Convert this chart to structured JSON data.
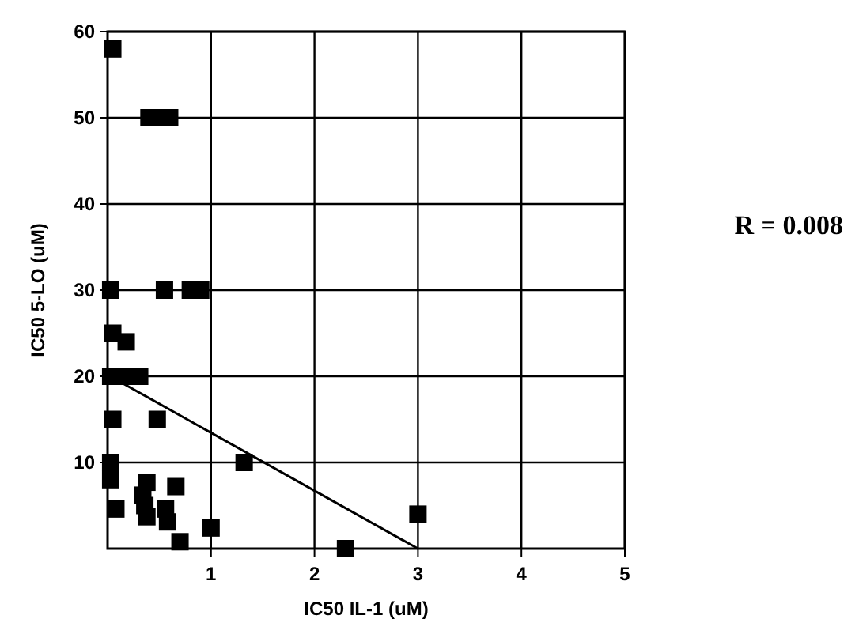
{
  "chart_data": {
    "type": "scatter",
    "xlabel": "IC50  IL-1  (uM)",
    "ylabel": "IC50  5-LO  (uM)",
    "xlim": [
      0,
      5
    ],
    "ylim": [
      0,
      60
    ],
    "xticks": [
      1,
      2,
      3,
      4,
      5
    ],
    "yticks": [
      10,
      20,
      30,
      40,
      50,
      60
    ],
    "grid": true,
    "marker": "square",
    "annotations": [
      "R = 0.008"
    ],
    "series": [
      {
        "color": "#000000",
        "x": [
          0.05,
          0.4,
          0.5,
          0.6,
          0.03,
          0.55,
          0.8,
          0.9,
          0.05,
          0.18,
          0.03,
          0.17,
          0.31,
          0.05,
          0.48,
          0.03,
          0.03,
          1.32,
          0.38,
          0.66,
          0.34,
          0.08,
          0.36,
          0.38,
          0.56,
          0.58,
          0.7,
          1.0,
          2.3,
          3.0
        ],
        "values": [
          58,
          50,
          50,
          50,
          30,
          30,
          30,
          30,
          25,
          24,
          20,
          20,
          20,
          15,
          15,
          10,
          8,
          10,
          7.7,
          7.2,
          6.2,
          4.6,
          5,
          3.7,
          4.6,
          3.1,
          0.8,
          2.4,
          0,
          4
        ]
      },
      {
        "type": "line",
        "color": "#000000",
        "marker": "none",
        "x": [
          0.1,
          3
        ],
        "values": [
          19.5,
          0
        ]
      }
    ]
  }
}
